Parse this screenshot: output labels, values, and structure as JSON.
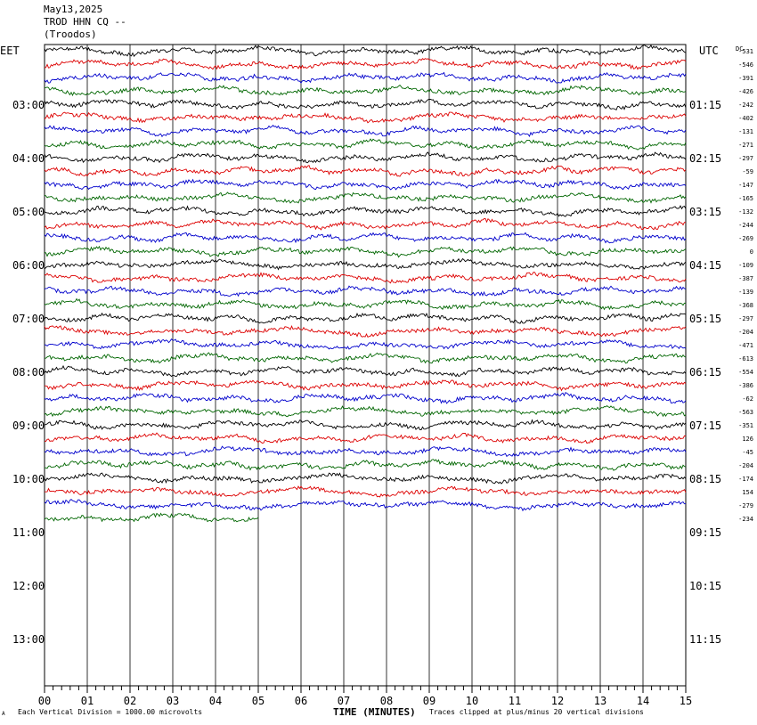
{
  "header": {
    "date": "May13,2025",
    "station": "TROD HHN CQ --",
    "location": "(Troodos)"
  },
  "left_timezone": "EET",
  "right_timezone": "UTC",
  "dc_label": "DC",
  "footer": {
    "left_note": "Each Vertical Division = 1000.00 microvolts",
    "xlabel": "TIME (MINUTES)",
    "right_note": "Traces clipped at plus/minus 20 vertical divisions",
    "corner_mark": "A"
  },
  "colors": {
    "trace_cycle": [
      "#000000",
      "#dd0000",
      "#0000cc",
      "#006600"
    ],
    "grid": "#000000",
    "background": "#ffffff"
  },
  "chart_data": {
    "type": "line",
    "title": "May13,2025 TROD HHN CQ -- (Troodos)",
    "xlabel": "TIME (MINUTES)",
    "xlim": [
      0,
      15
    ],
    "x_ticks": [
      "00",
      "01",
      "02",
      "03",
      "04",
      "05",
      "06",
      "07",
      "08",
      "09",
      "10",
      "11",
      "12",
      "13",
      "14",
      "15"
    ],
    "rows_per_hour": 4,
    "row_minutes": 15,
    "left_hour_labels": [
      "03:00",
      "04:00",
      "05:00",
      "06:00",
      "07:00",
      "08:00",
      "09:00",
      "10:00",
      "11:00",
      "12:00",
      "13:00"
    ],
    "right_hour_labels": [
      "01:15",
      "02:15",
      "03:15",
      "04:15",
      "05:15",
      "06:15",
      "07:15",
      "08:15",
      "09:15",
      "10:15",
      "11:15"
    ],
    "dc_offsets": [
      -531,
      -546,
      -391,
      -426,
      -242,
      -402,
      -131,
      -271,
      -297,
      -59,
      -147,
      -165,
      -132,
      -244,
      -269,
      0,
      -109,
      -387,
      -139,
      -368,
      -297,
      -204,
      -471,
      -613,
      -554,
      -386,
      -62,
      -563,
      -351,
      126,
      -45,
      -204,
      -174,
      154,
      -279,
      -234
    ],
    "trace_count": 36,
    "last_trace_end_minute": 5.0,
    "total_row_slots": 48,
    "grid": true
  }
}
